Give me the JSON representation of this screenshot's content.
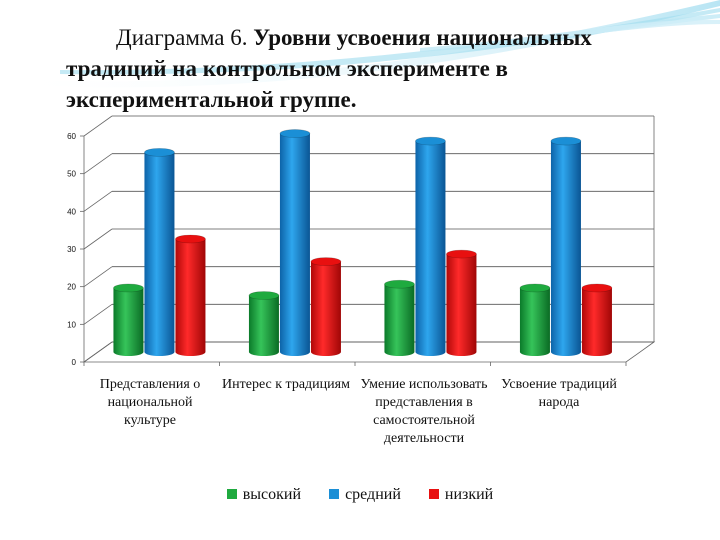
{
  "slide": {
    "title_prefix": "Диаграмма 6.",
    "title_bold": "Уровни усвоения национальных традиций на контрольном эксперименте в экспериментальной группе."
  },
  "chart_data": {
    "type": "bar",
    "title": "Уровни усвоения национальных традиций на контрольном эксперименте в экспериментальной группе.",
    "categories": [
      "Представления о национальной культуре",
      "Интерес к традициям",
      "Умение использовать представления в самостоятельной деятельности",
      "Усвоение традиций народа"
    ],
    "series": [
      {
        "name": "высокий",
        "values": [
          17,
          15,
          18,
          17
        ],
        "color": "#1faa3f"
      },
      {
        "name": "средний",
        "values": [
          53,
          58,
          56,
          56
        ],
        "color": "#1b8fd6"
      },
      {
        "name": "низкий",
        "values": [
          30,
          24,
          26,
          17
        ],
        "color": "#e81010"
      }
    ],
    "ylim": [
      0,
      60
    ],
    "yticks": [
      0,
      10,
      20,
      30,
      40,
      50,
      60
    ],
    "grid": true,
    "legend": "bottom"
  }
}
